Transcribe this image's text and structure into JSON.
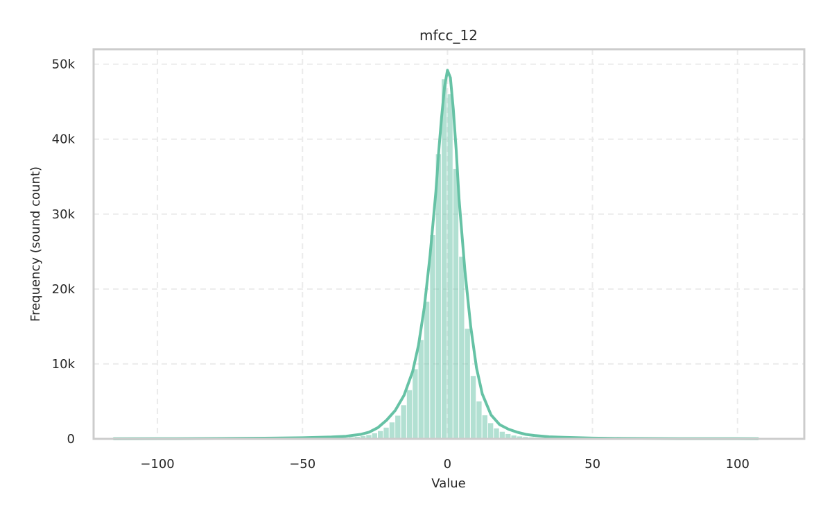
{
  "chart_data": {
    "type": "bar",
    "title": "mfcc_12",
    "xlabel": "Value",
    "ylabel": "Frequency (sound count)",
    "xlim": [
      -122,
      123
    ],
    "ylim": [
      0,
      52000
    ],
    "xticks": [
      -100,
      -50,
      0,
      50,
      100
    ],
    "xtick_labels": [
      "−100",
      "−50",
      "0",
      "50",
      "100"
    ],
    "yticks": [
      0,
      10000,
      20000,
      30000,
      40000,
      50000
    ],
    "ytick_labels": [
      "0",
      "10k",
      "20k",
      "30k",
      "40k",
      "50k"
    ],
    "grid": true,
    "color": "#66c2a5",
    "bin_width": 2,
    "bin_centers": [
      -35,
      -33,
      -31,
      -29,
      -27,
      -25,
      -23,
      -21,
      -19,
      -17,
      -15,
      -13,
      -11,
      -9,
      -7,
      -5,
      -3,
      -1,
      1,
      3,
      5,
      7,
      9,
      11,
      13,
      15,
      17,
      19,
      21,
      23,
      25,
      27,
      29,
      31,
      33,
      35
    ],
    "values": [
      150,
      200,
      280,
      380,
      520,
      750,
      1050,
      1500,
      2200,
      3100,
      4500,
      6500,
      9300,
      13200,
      18300,
      27200,
      38000,
      48000,
      46000,
      36000,
      24300,
      14700,
      8400,
      5000,
      3150,
      2100,
      1400,
      950,
      650,
      450,
      330,
      250,
      190,
      150,
      120,
      100
    ],
    "kde": {
      "x": [
        -115,
        -100,
        -80,
        -60,
        -50,
        -40,
        -35,
        -30,
        -27,
        -24,
        -21,
        -18,
        -15,
        -12,
        -10,
        -8,
        -6,
        -4,
        -3,
        -2,
        -1,
        0,
        1,
        2,
        3,
        4,
        6,
        8,
        10,
        12,
        15,
        18,
        21,
        24,
        27,
        30,
        35,
        40,
        50,
        60,
        80,
        100,
        107
      ],
      "y": [
        10,
        20,
        50,
        100,
        150,
        250,
        350,
        600,
        900,
        1500,
        2500,
        3800,
        5800,
        9000,
        12500,
        17500,
        24500,
        33000,
        38500,
        43000,
        47000,
        49200,
        48200,
        44000,
        38500,
        32000,
        22500,
        15000,
        9500,
        6000,
        3200,
        1900,
        1300,
        900,
        600,
        450,
        280,
        200,
        100,
        60,
        30,
        15,
        10
      ]
    }
  }
}
